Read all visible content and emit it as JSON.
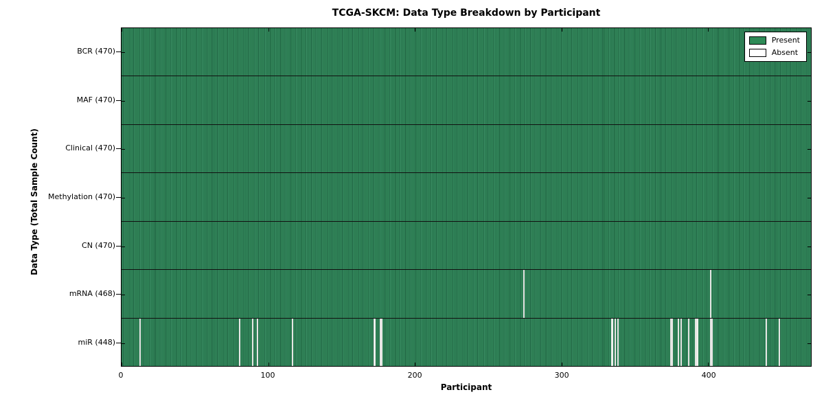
{
  "title": "TCGA-SKCM: Data Type Breakdown by Participant",
  "chart_data": {
    "type": "heatmap",
    "title": "TCGA-SKCM: Data Type Breakdown by Participant",
    "xlabel": "Participant",
    "ylabel": "Data Type (Total Sample Count)",
    "xlim": [
      0,
      470
    ],
    "x_ticks": [
      0,
      100,
      200,
      300,
      400
    ],
    "x_tick_labels": [
      "0",
      "100",
      "200",
      "300",
      "400"
    ],
    "n_participants": 470,
    "grid": "horizontal row separators only",
    "legend_position": "upper right",
    "legend": [
      {
        "label": "Present",
        "color": "#2e8b57"
      },
      {
        "label": "Absent",
        "color": "#ffffff"
      }
    ],
    "colors": {
      "present_fill": "#2e8355",
      "present_edge_dark": "#1f6241",
      "present_edge_light": "#3c9166",
      "absent_fill": "#ffffff",
      "axis": "#000000",
      "background": "#ffffff"
    },
    "rows": [
      {
        "name": "BCR",
        "label": "BCR (470)",
        "total": 470,
        "absent_participants": []
      },
      {
        "name": "MAF",
        "label": "MAF (470)",
        "total": 470,
        "absent_participants": []
      },
      {
        "name": "Clinical",
        "label": "Clinical (470)",
        "total": 470,
        "absent_participants": []
      },
      {
        "name": "Methylation",
        "label": "Methylation (470)",
        "total": 470,
        "absent_participants": []
      },
      {
        "name": "CN",
        "label": "CN (470)",
        "total": 470,
        "absent_participants": []
      },
      {
        "name": "mRNA",
        "label": "mRNA (468)",
        "total": 468,
        "absent_participants": [
          274,
          401
        ]
      },
      {
        "name": "miR",
        "label": "miR (448)",
        "total": 448,
        "absent_participants": [
          12,
          80,
          89,
          92,
          116,
          172,
          176,
          177,
          334,
          336,
          338,
          374,
          375,
          379,
          381,
          386,
          391,
          392,
          401,
          402,
          439,
          448
        ]
      }
    ]
  }
}
